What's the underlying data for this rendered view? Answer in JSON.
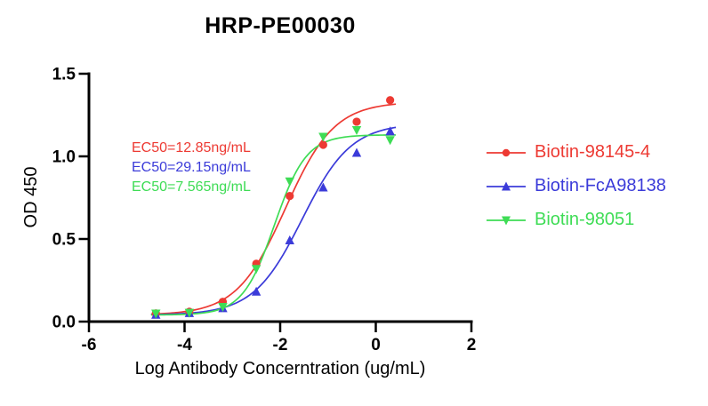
{
  "title": "HRP-PE00030",
  "chart_data": {
    "type": "scatter",
    "title": "HRP-PE00030",
    "xlabel": "Log Antibody Concerntration (ug/mL)",
    "ylabel": "OD 450",
    "xlim": [
      -6,
      2
    ],
    "ylim": [
      0,
      1.5
    ],
    "x_ticks": [
      "-6",
      "-4",
      "-2",
      "0",
      "2"
    ],
    "y_ticks": [
      "0.0",
      "0.5",
      "1.0",
      "1.5"
    ],
    "grid": false,
    "legend_position": "right",
    "x": [
      -4.6,
      -3.9,
      -3.2,
      -2.5,
      -1.8,
      -1.1,
      -0.4,
      0.3
    ],
    "curve_x_range": [
      -4.7,
      0.42
    ],
    "series": [
      {
        "name": "Biotin-98145-4",
        "color": "#ED3A33",
        "marker": "circle",
        "ec50_label": "EC50=12.85ng/mL",
        "values": [
          0.05,
          0.06,
          0.12,
          0.35,
          0.76,
          1.07,
          1.21,
          1.34
        ],
        "fit_4pl": {
          "bottom": 0.04,
          "top": 1.33,
          "log_ec50": -1.89,
          "hill": 0.85
        }
      },
      {
        "name": "Biotin-FcA98138",
        "color": "#3B3BD9",
        "marker": "triangle-up",
        "ec50_label": "EC50=29.15ng/mL",
        "values": [
          0.04,
          0.05,
          0.08,
          0.18,
          0.49,
          0.81,
          1.02,
          1.15
        ],
        "fit_4pl": {
          "bottom": 0.04,
          "top": 1.2,
          "log_ec50": -1.54,
          "hill": 0.85
        }
      },
      {
        "name": "Biotin-98051",
        "color": "#3EDC55",
        "marker": "triangle-down",
        "ec50_label": "EC50=7.565ng/mL",
        "values": [
          0.05,
          0.055,
          0.09,
          0.32,
          0.85,
          1.12,
          1.16,
          1.1
        ],
        "fit_4pl": {
          "bottom": 0.04,
          "top": 1.13,
          "log_ec50": -2.12,
          "hill": 1.3
        }
      }
    ]
  }
}
